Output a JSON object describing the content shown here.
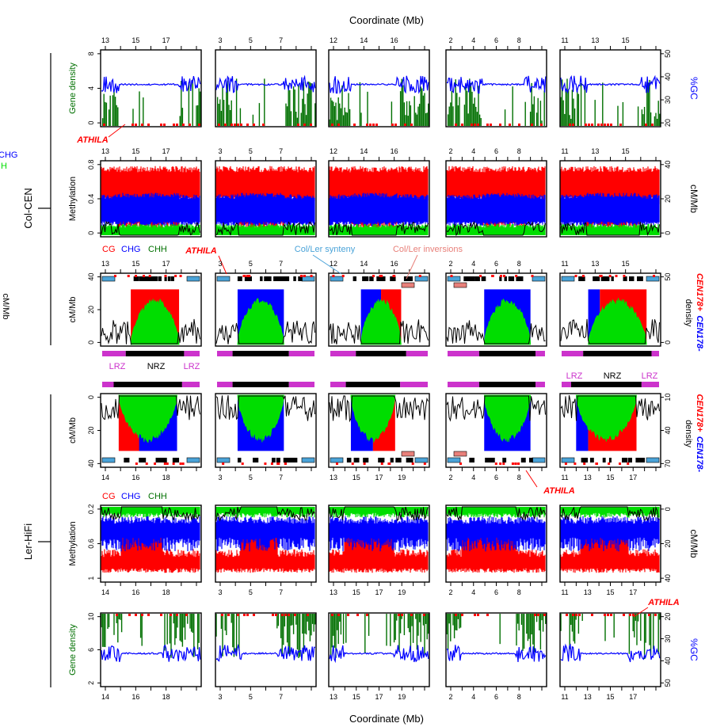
{
  "figure": {
    "top_xlabel": "Coordinate (Mb)",
    "bottom_xlabel": "Coordinate (Mb)",
    "assembly_labels": [
      "Col-CEN",
      "Ler-HiFi"
    ],
    "cut_left_labels": [
      "CHG",
      "IH",
      "cM/Mb"
    ],
    "zone_labels": {
      "lrz_left": "LRZ",
      "nrz": "NRZ",
      "lrz_right": "LRZ"
    },
    "annotations": {
      "athila_row1": "ATHILA",
      "athila_row2": "ATHILA",
      "athila_ler_meth": "ATHILA",
      "athila_ler_gene": "ATHILA",
      "colors_label_1": {
        "cg": "CG",
        "chg": "CHG",
        "chh": "CHH"
      },
      "colors_label_2": {
        "cg": "CG",
        "chg": "CHG",
        "chh": "CHH"
      },
      "synteny": "Col/Ler synteny",
      "inversions": "Col/Ler inversions"
    }
  },
  "colors": {
    "red": "#ff0000",
    "blue": "#0000ff",
    "green": "#00dd00",
    "dark_green": "#007000",
    "black": "#000000",
    "magenta": "#cc33cc",
    "light_blue": "#4aa3d8",
    "salmon": "#e8807a"
  },
  "chart_data": [
    {
      "type": "line",
      "row": "Col-CEN gene density / GC",
      "ylabel_left": "Gene density",
      "ylabel_right": "%GC",
      "left_ticks": [
        "0",
        "4",
        "8"
      ],
      "right_ticks": [
        "20",
        "30",
        "40",
        "50"
      ],
      "series": [
        {
          "name": "Gene density"
        },
        {
          "name": "%GC"
        }
      ],
      "panels": [
        {
          "x_ticks": [
            "13",
            "15",
            "17"
          ]
        },
        {
          "x_ticks": [
            "3",
            "5",
            "7"
          ]
        },
        {
          "x_ticks": [
            "12",
            "14",
            "16"
          ]
        },
        {
          "x_ticks": [
            "2",
            "4",
            "6",
            "8"
          ]
        },
        {
          "x_ticks": [
            "11",
            "13",
            "15"
          ]
        }
      ]
    },
    {
      "type": "line",
      "row": "Col-CEN methylation",
      "ylabel_left": "Methylation",
      "ylabel_right": "cM/Mb",
      "left_ticks": [
        "0",
        "0.4",
        "0.8"
      ],
      "right_ticks": [
        "0",
        "20",
        "40"
      ],
      "series": [
        {
          "name": "CG"
        },
        {
          "name": "CHG"
        },
        {
          "name": "CHH"
        }
      ],
      "panels": [
        {
          "x_ticks": [
            "13",
            "15",
            "17"
          ]
        },
        {
          "x_ticks": [
            "3",
            "5",
            "7"
          ]
        },
        {
          "x_ticks": [
            "12",
            "14",
            "16"
          ]
        },
        {
          "x_ticks": [
            "2",
            "4",
            "6",
            "8"
          ]
        },
        {
          "x_ticks": [
            "11",
            "13",
            "15"
          ]
        }
      ]
    },
    {
      "type": "area",
      "row": "Col-CEN CEN178 density",
      "ylabel_left": "cM/Mb",
      "ylabel_right_red": "CEN178+",
      "ylabel_right_blue": "CEN178-",
      "ylabel_right_black": "density",
      "left_ticks": [
        "0",
        "20",
        "40"
      ],
      "right_ticks": [
        "0",
        "50"
      ],
      "panels": [
        {
          "x_ticks": [
            "13",
            "15",
            "17"
          ]
        },
        {
          "x_ticks": [
            "3",
            "5",
            "7"
          ]
        },
        {
          "x_ticks": [
            "12",
            "14",
            "16"
          ]
        },
        {
          "x_ticks": [
            "2",
            "4",
            "6",
            "8"
          ]
        },
        {
          "x_ticks": [
            "11",
            "13",
            "15"
          ]
        }
      ]
    },
    {
      "type": "area",
      "row": "Ler-HiFi CEN178 density",
      "ylabel_left": "cM/Mb",
      "ylabel_right_red": "CEN178+",
      "ylabel_right_blue": "CEN178-",
      "ylabel_right_black": "density",
      "left_ticks": [
        "0",
        "20",
        "40"
      ],
      "right_ticks": [
        "10",
        "40",
        "70"
      ],
      "panels": [
        {
          "x_ticks": [
            "14",
            "16",
            "18"
          ]
        },
        {
          "x_ticks": [
            "3",
            "5",
            "7"
          ]
        },
        {
          "x_ticks": [
            "13",
            "15",
            "17",
            "19"
          ]
        },
        {
          "x_ticks": [
            "2",
            "4",
            "6",
            "8"
          ]
        },
        {
          "x_ticks": [
            "11",
            "13",
            "15",
            "17"
          ]
        }
      ]
    },
    {
      "type": "line",
      "row": "Ler-HiFi methylation",
      "ylabel_left": "Methylation",
      "ylabel_right": "cM/Mb",
      "left_ticks": [
        "0.2",
        "0.6",
        "1"
      ],
      "right_ticks": [
        "0",
        "20",
        "40"
      ],
      "series": [
        {
          "name": "CG"
        },
        {
          "name": "CHG"
        },
        {
          "name": "CHH"
        }
      ],
      "panels": [
        {
          "x_ticks": [
            "14",
            "16",
            "18"
          ]
        },
        {
          "x_ticks": [
            "3",
            "5",
            "7"
          ]
        },
        {
          "x_ticks": [
            "13",
            "15",
            "17",
            "19"
          ]
        },
        {
          "x_ticks": [
            "2",
            "4",
            "6",
            "8"
          ]
        },
        {
          "x_ticks": [
            "11",
            "13",
            "15",
            "17"
          ]
        }
      ]
    },
    {
      "type": "line",
      "row": "Ler-HiFi gene density / GC",
      "ylabel_left": "Gene density",
      "ylabel_right": "%GC",
      "left_ticks": [
        "2",
        "6",
        "10"
      ],
      "right_ticks": [
        "20",
        "30",
        "40",
        "50"
      ],
      "series": [
        {
          "name": "Gene density"
        },
        {
          "name": "%GC"
        }
      ],
      "panels": [
        {
          "x_ticks": [
            "14",
            "16",
            "18"
          ]
        },
        {
          "x_ticks": [
            "3",
            "5",
            "7"
          ]
        },
        {
          "x_ticks": [
            "13",
            "15",
            "17",
            "19"
          ]
        },
        {
          "x_ticks": [
            "2",
            "4",
            "6",
            "8"
          ]
        },
        {
          "x_ticks": [
            "11",
            "13",
            "15",
            "17"
          ]
        }
      ]
    }
  ]
}
